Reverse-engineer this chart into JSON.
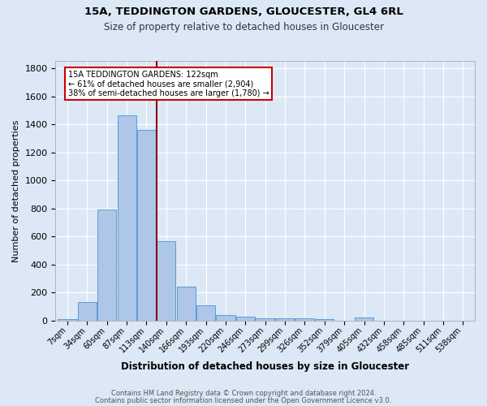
{
  "title1": "15A, TEDDINGTON GARDENS, GLOUCESTER, GL4 6RL",
  "title2": "Size of property relative to detached houses in Gloucester",
  "xlabel": "Distribution of detached houses by size in Gloucester",
  "ylabel": "Number of detached properties",
  "bar_labels": [
    "7sqm",
    "34sqm",
    "60sqm",
    "87sqm",
    "113sqm",
    "140sqm",
    "166sqm",
    "193sqm",
    "220sqm",
    "246sqm",
    "273sqm",
    "299sqm",
    "326sqm",
    "352sqm",
    "379sqm",
    "405sqm",
    "432sqm",
    "458sqm",
    "485sqm",
    "511sqm",
    "538sqm"
  ],
  "bar_heights": [
    10,
    135,
    795,
    1465,
    1360,
    570,
    245,
    108,
    38,
    27,
    20,
    15,
    17,
    10,
    0,
    22,
    0,
    0,
    0,
    0,
    0
  ],
  "bar_color": "#aec6e8",
  "bar_edge_color": "#5b9bd5",
  "red_line_x": 4.5,
  "red_line_color": "#8b0000",
  "annotation_text": "15A TEDDINGTON GARDENS: 122sqm\n← 61% of detached houses are smaller (2,904)\n38% of semi-detached houses are larger (1,780) →",
  "annotation_box_color": "#ffffff",
  "annotation_box_edge": "#cc0000",
  "ylim": [
    0,
    1850
  ],
  "yticks": [
    0,
    200,
    400,
    600,
    800,
    1000,
    1200,
    1400,
    1600,
    1800
  ],
  "bg_color": "#dce8f5",
  "footer1": "Contains HM Land Registry data © Crown copyright and database right 2024.",
  "footer2": "Contains public sector information licensed under the Open Government Licence v3.0."
}
